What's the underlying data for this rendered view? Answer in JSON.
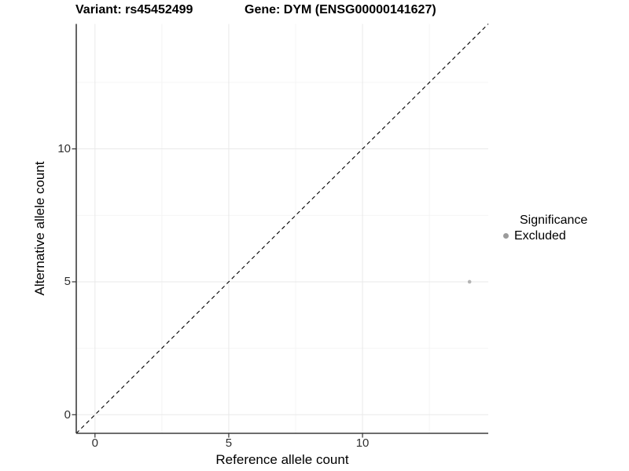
{
  "chart_data": {
    "type": "scatter",
    "titles": {
      "left": "Variant: rs45452499",
      "right": "Gene: DYM (ENSG00000141627)"
    },
    "xlabel": "Reference allele count",
    "ylabel": "Alternative allele count",
    "xlim": [
      -0.7,
      14.7
    ],
    "ylim": [
      -0.7,
      14.7
    ],
    "x_ticks": [
      0,
      5,
      10
    ],
    "y_ticks": [
      0,
      5,
      10
    ],
    "grid": true,
    "minor_grid": true,
    "identity_line": {
      "style": "dashed",
      "from": [
        -0.7,
        -0.7
      ],
      "to": [
        14.7,
        14.7
      ],
      "color": "#000000"
    },
    "series": [
      {
        "name": "Excluded",
        "color": "#b4b4b4",
        "point_radius": 2.3,
        "points": [
          {
            "x": 14,
            "y": 5
          }
        ]
      }
    ],
    "legend": {
      "title": "Significance",
      "position": "right",
      "entries": [
        {
          "label": "Excluded",
          "color": "#9b9b9b"
        }
      ]
    },
    "colors": {
      "background": "#ffffff",
      "grid_major": "#e9e9e9",
      "grid_minor": "#f4f4f4",
      "axis_line": "#3d3d3d",
      "tick": "#333333",
      "tick_label": "#303030",
      "text": "#000000"
    }
  }
}
